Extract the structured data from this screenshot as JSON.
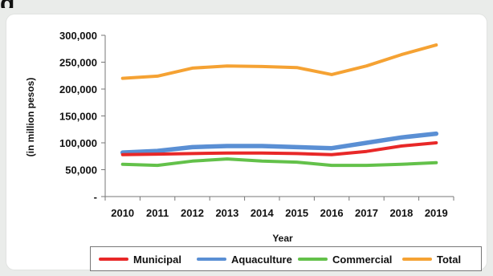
{
  "page": {
    "top_fragment": "g"
  },
  "chart_data": {
    "type": "line",
    "categories": [
      "2010",
      "2011",
      "2012",
      "2013",
      "2014",
      "2015",
      "2016",
      "2017",
      "2018",
      "2019"
    ],
    "x": [
      2010,
      2011,
      2012,
      2013,
      2014,
      2015,
      2016,
      2017,
      2018,
      2019
    ],
    "xlabel": "Year",
    "ylabel": "(in million pesos)",
    "ylim": [
      0,
      300000
    ],
    "yticks": [
      {
        "value": 0,
        "label": "-"
      },
      {
        "value": 50000,
        "label": "50,000"
      },
      {
        "value": 100000,
        "label": "100,000"
      },
      {
        "value": 150000,
        "label": "150,000"
      },
      {
        "value": 200000,
        "label": "200,000"
      },
      {
        "value": 250000,
        "label": "250,000"
      },
      {
        "value": 300000,
        "label": "300,000"
      }
    ],
    "grid": false,
    "legend_placement": "bottom",
    "series": [
      {
        "name": "Municipal",
        "color": "#e82828",
        "values": [
          78000,
          79000,
          80000,
          81000,
          81000,
          80000,
          78000,
          84000,
          94000,
          100000
        ]
      },
      {
        "name": "Aquaculture",
        "color": "#5a8fd4",
        "values": [
          82000,
          85000,
          92000,
          94000,
          94000,
          92000,
          90000,
          100000,
          110000,
          117000
        ]
      },
      {
        "name": "Commercial",
        "color": "#63c14a",
        "values": [
          60000,
          58000,
          66000,
          70000,
          66000,
          64000,
          58000,
          58000,
          60000,
          63000
        ]
      },
      {
        "name": "Total",
        "color": "#f5a233",
        "values": [
          220000,
          224000,
          239000,
          243000,
          242000,
          240000,
          227000,
          243000,
          264000,
          282000
        ]
      }
    ]
  }
}
